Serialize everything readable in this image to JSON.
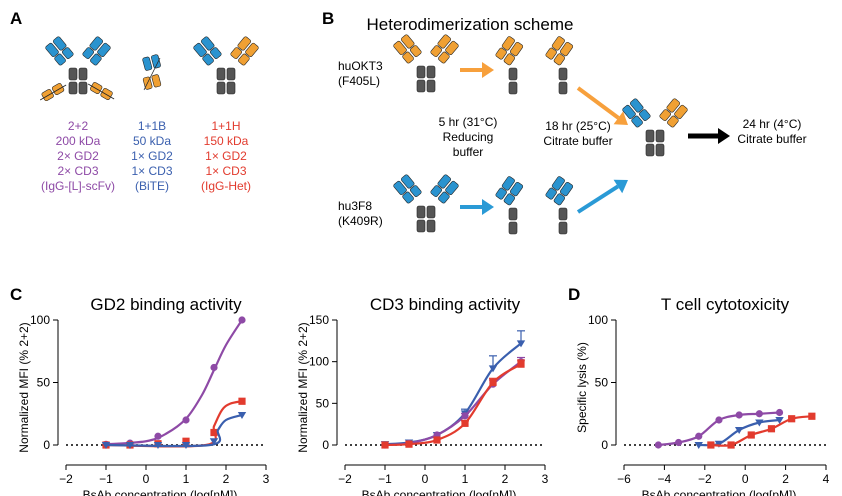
{
  "colors": {
    "blue_domain": "#2a93cf",
    "orange_domain": "#f0a033",
    "gray_domain": "#555555",
    "purple": "#8e4aa6",
    "blue_series": "#3a5fae",
    "red": "#e23b2e",
    "arrow_orange": "#f7a03c",
    "arrow_blue": "#2a9ad6"
  },
  "panel_a": {
    "letter": "A",
    "constructs": [
      {
        "lines": [
          "2+2",
          "200 kDa",
          "2× GD2",
          "2× CD3",
          "(IgG-[L]-scFv)"
        ],
        "color": "#8e4aa6"
      },
      {
        "lines": [
          "1+1B",
          "50 kDa",
          "1× GD2",
          "1× CD3",
          "(BiTE)"
        ],
        "color": "#3a5fae"
      },
      {
        "lines": [
          "1+1H",
          "150 kDa",
          "1× GD2",
          "1× CD3",
          "(IgG-Het)"
        ],
        "color": "#e23b2e"
      }
    ]
  },
  "panel_b": {
    "letter": "B",
    "title": "Heterodimerization scheme",
    "parent_top": [
      "huOKT3",
      "(F405L)"
    ],
    "parent_bottom": [
      "hu3F8",
      "(K409R)"
    ],
    "step1": [
      "5 hr (31°C)",
      "Reducing",
      "buffer"
    ],
    "step2": [
      "18 hr (25°C)",
      "Citrate buffer"
    ],
    "step3": [
      "24 hr (4°C)",
      "Citrate buffer"
    ]
  },
  "panel_c": {
    "letter": "C"
  },
  "panel_d": {
    "letter": "D"
  },
  "chart_data": [
    {
      "type": "line",
      "title": "GD2 binding activity",
      "xlabel": "BsAb concentration (log[nM])",
      "ylabel": "Normalized MFI (% 2+2)",
      "xlim": [
        -2,
        3
      ],
      "ylim": [
        0,
        100
      ],
      "xticks": [
        "−2",
        "−1",
        "0",
        "1",
        "2",
        "3"
      ],
      "yticks": [
        "0",
        "50",
        "100"
      ],
      "series": [
        {
          "color": "#8e4aa6",
          "marker": "circle",
          "x": [
            -1,
            -0.4,
            0.3,
            1,
            1.7,
            2.4
          ],
          "y": [
            0.5,
            1.5,
            7,
            20,
            62,
            100
          ],
          "curve": [
            [
              -1,
              0.5
            ],
            [
              0,
              3
            ],
            [
              0.5,
              9
            ],
            [
              1,
              21
            ],
            [
              1.4,
              40
            ],
            [
              1.7,
              60
            ],
            [
              2.0,
              80
            ],
            [
              2.4,
              100
            ]
          ]
        },
        {
          "color": "#e23b2e",
          "marker": "square",
          "x": [
            -1,
            -0.4,
            0.3,
            1,
            1.7,
            2.4
          ],
          "y": [
            0,
            0,
            1,
            3,
            10,
            35
          ],
          "curve": [
            [
              -1,
              0
            ],
            [
              1.5,
              0
            ],
            [
              1.7,
              15
            ],
            [
              1.9,
              28
            ],
            [
              2.1,
              33
            ],
            [
              2.4,
              35
            ]
          ]
        },
        {
          "color": "#3a5fae",
          "marker": "triangle-down",
          "x": [
            -1,
            -0.4,
            0.3,
            1,
            1.7,
            2.4
          ],
          "y": [
            0,
            0,
            0,
            0,
            3,
            24
          ],
          "curve": [
            [
              -1,
              0
            ],
            [
              1.6,
              0
            ],
            [
              1.8,
              12
            ],
            [
              2.0,
              20
            ],
            [
              2.4,
              24
            ]
          ]
        }
      ],
      "baseline": 0
    },
    {
      "type": "line",
      "title": "CD3 binding activity",
      "xlabel": "BsAb concentration (log[nM])",
      "ylabel": "Normalized MFI (% 2+2)",
      "xlim": [
        -2,
        3
      ],
      "ylim": [
        0,
        150
      ],
      "xticks": [
        "−2",
        "−1",
        "0",
        "1",
        "2",
        "3"
      ],
      "yticks": [
        "0",
        "50",
        "100",
        "150"
      ],
      "series": [
        {
          "color": "#3a5fae",
          "marker": "triangle-down",
          "x": [
            -1,
            -0.4,
            0.3,
            1,
            1.7,
            2.4
          ],
          "y": [
            1,
            3,
            12,
            38,
            92,
            122
          ],
          "err": [
            0,
            0,
            0,
            5,
            15,
            15
          ]
        },
        {
          "color": "#8e4aa6",
          "marker": "circle",
          "x": [
            -1,
            -0.4,
            0.3,
            1,
            1.7,
            2.4
          ],
          "y": [
            0,
            2,
            12,
            35,
            73,
            100
          ],
          "err": [
            0,
            0,
            0,
            3,
            5,
            5
          ]
        },
        {
          "color": "#e23b2e",
          "marker": "square",
          "x": [
            -1,
            -0.4,
            0.3,
            1,
            1.7,
            2.4
          ],
          "y": [
            0,
            1,
            6,
            26,
            75,
            97
          ],
          "err": [
            0,
            0,
            0,
            3,
            5,
            5
          ]
        }
      ],
      "baseline": 0
    },
    {
      "type": "line",
      "title": "T cell cytotoxicity",
      "xlabel": "BsAb concentration (log[pM])",
      "ylabel": "Specific lysis (%)",
      "xlim": [
        -6,
        4
      ],
      "ylim": [
        0,
        100
      ],
      "xticks": [
        "−6",
        "−4",
        "−2",
        "0",
        "2",
        "4"
      ],
      "yticks": [
        "0",
        "50",
        "100"
      ],
      "series": [
        {
          "color": "#8e4aa6",
          "marker": "circle",
          "x": [
            -4.3,
            -3.3,
            -2.3,
            -1.3,
            -0.3,
            0.7,
            1.7
          ],
          "y": [
            0,
            2,
            7,
            20,
            24,
            25,
            26
          ]
        },
        {
          "color": "#3a5fae",
          "marker": "triangle-down",
          "x": [
            -2.3,
            -1.3,
            -0.3,
            0.7,
            1.7
          ],
          "y": [
            0,
            1,
            12,
            18,
            20
          ]
        },
        {
          "color": "#e23b2e",
          "marker": "square",
          "x": [
            -1.7,
            -0.7,
            0.3,
            1.3,
            2.3,
            3.3
          ],
          "y": [
            0,
            0,
            8,
            13,
            21,
            23
          ]
        }
      ],
      "baseline": 0
    }
  ]
}
